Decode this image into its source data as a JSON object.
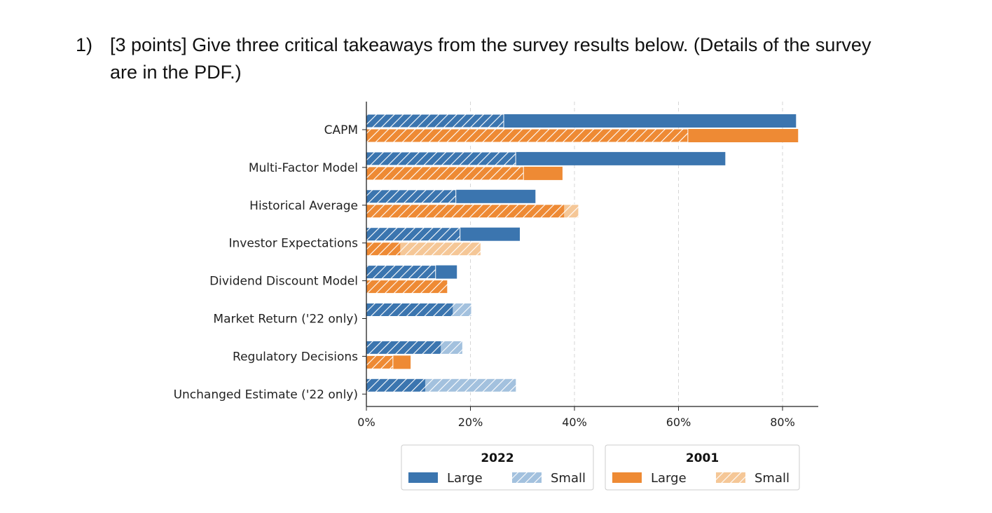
{
  "question": {
    "number": "1)",
    "text": "[3 points] Give three critical takeaways from the survey results below. (Details of the survey are in the PDF.)"
  },
  "chart_data": {
    "type": "bar",
    "orientation": "horizontal",
    "categories": [
      "CAPM",
      "Multi-Factor Model",
      "Historical Average",
      "Investor Expectations",
      "Dividend Discount Model",
      "Market Return ('22 only)",
      "Regulatory Decisions",
      "Unchanged Estimate ('22 only)"
    ],
    "series": [
      {
        "name": "Large",
        "group": "2022",
        "style": "solid",
        "color": "#3b75af",
        "values": [
          82.6,
          69.0,
          32.5,
          29.5,
          17.4,
          16.6,
          14.3,
          11.3
        ]
      },
      {
        "name": "Small",
        "group": "2022",
        "style": "hatched",
        "color": "#a3c1de",
        "values": [
          26.4,
          28.7,
          17.2,
          18.0,
          13.3,
          20.2,
          18.5,
          28.8
        ]
      },
      {
        "name": "Large",
        "group": "2001",
        "style": "solid",
        "color": "#ee8a34",
        "values": [
          83.0,
          37.7,
          38.0,
          6.5,
          15.6,
          null,
          8.5,
          null
        ]
      },
      {
        "name": "Small",
        "group": "2001",
        "style": "hatched",
        "color": "#f5c797",
        "values": [
          61.8,
          30.2,
          40.8,
          22.0,
          15.6,
          null,
          5.1,
          null
        ]
      }
    ],
    "xlim": [
      0,
      87
    ],
    "xticks": [
      "0%",
      "20%",
      "40%",
      "60%",
      "80%"
    ],
    "xtick_values": [
      0,
      20,
      40,
      60,
      80
    ],
    "grid": "vertical dashed",
    "legend": {
      "placement": "bottom",
      "groups": [
        {
          "title": "2022",
          "items": [
            "Large",
            "Small"
          ]
        },
        {
          "title": "2001",
          "items": [
            "Large",
            "Small"
          ]
        }
      ]
    },
    "colors": {
      "blue_dark": "#3b75af",
      "blue_light": "#a3c1de",
      "orange_dark": "#ee8a34",
      "orange_light": "#f5c797"
    }
  }
}
